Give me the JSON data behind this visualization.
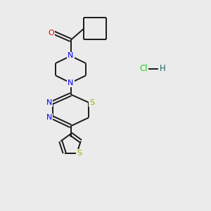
{
  "background_color": "#ebebeb",
  "bond_color": "#1a1a1a",
  "N_color": "#0000ee",
  "O_color": "#ee0000",
  "S_color": "#aaaa00",
  "Cl_color": "#22cc22",
  "H_color": "#226666",
  "line_width": 1.4,
  "figsize": [
    3.0,
    3.0
  ],
  "dpi": 100,
  "xlim": [
    0,
    10
  ],
  "ylim": [
    0,
    10
  ]
}
